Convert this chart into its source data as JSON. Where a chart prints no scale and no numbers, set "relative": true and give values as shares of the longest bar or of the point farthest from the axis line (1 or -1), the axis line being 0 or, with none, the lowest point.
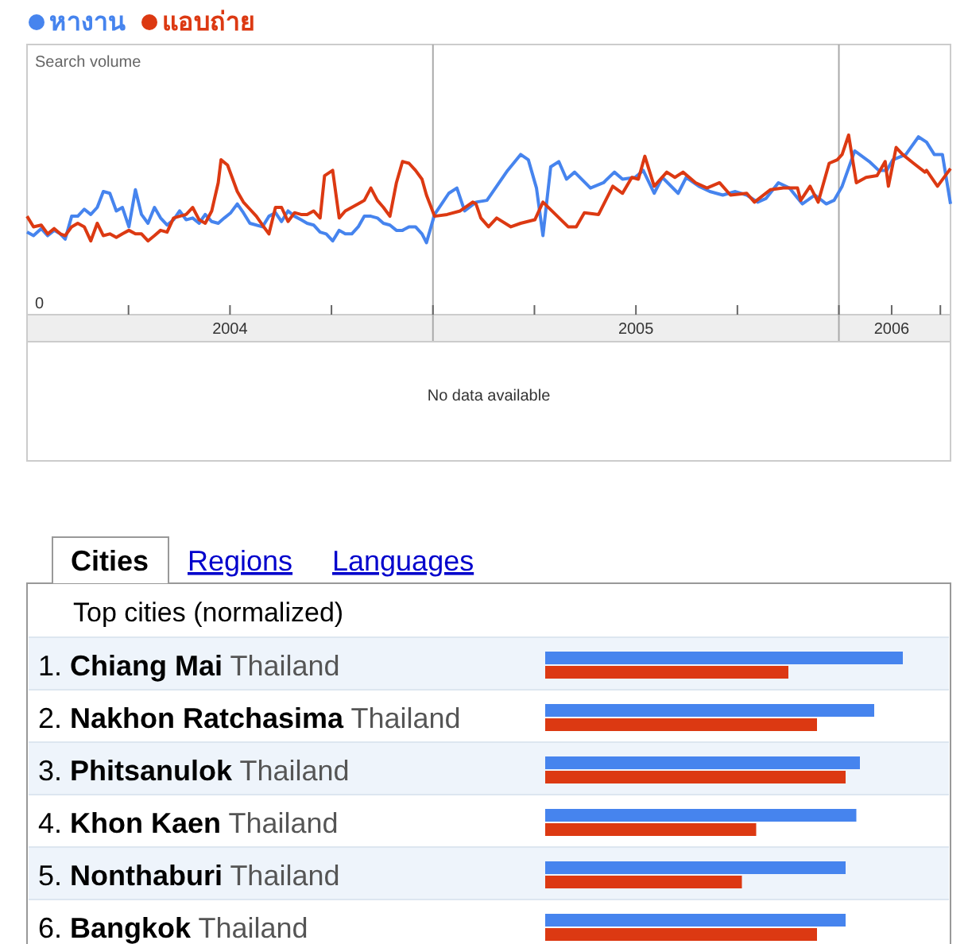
{
  "chart_data": [
    {
      "type": "line",
      "ylabel": "Search volume",
      "annotations": [
        "0",
        "No data available"
      ],
      "legend": "top left",
      "grid": "x",
      "relative": true,
      "line_style": "solid",
      "xlim": [
        2004,
        2006.275
      ],
      "xticks": [
        {
          "value": 2004.25,
          "label": null
        },
        {
          "value": 2004.5,
          "label": "2004"
        },
        {
          "value": 2004.75,
          "label": null
        },
        {
          "value": 2005,
          "label": null
        },
        {
          "value": 2005.25,
          "label": null
        },
        {
          "value": 2005.5,
          "label": "2005"
        },
        {
          "value": 2005.75,
          "label": null
        },
        {
          "value": 2006,
          "label": null
        },
        {
          "value": 2006.13,
          "label": "2006"
        },
        {
          "value": 2006.25,
          "label": null
        }
      ],
      "series": [
        {
          "name": "หางาน",
          "color": "#4684ee",
          "x": [
            2004.0,
            2004.016,
            2004.035,
            2004.051,
            2004.067,
            2004.082,
            2004.094,
            2004.11,
            2004.125,
            2004.141,
            2004.157,
            2004.173,
            2004.188,
            2004.204,
            2004.22,
            2004.235,
            2004.251,
            2004.267,
            2004.282,
            2004.298,
            2004.314,
            2004.329,
            2004.345,
            2004.361,
            2004.376,
            2004.392,
            2004.408,
            2004.424,
            2004.439,
            2004.455,
            2004.471,
            2004.486,
            2004.502,
            2004.518,
            2004.533,
            2004.549,
            2004.565,
            2004.58,
            2004.596,
            2004.612,
            2004.627,
            2004.643,
            2004.659,
            2004.675,
            2004.69,
            2004.706,
            2004.722,
            2004.737,
            2004.753,
            2004.769,
            2004.784,
            2004.8,
            2004.816,
            2004.831,
            2004.847,
            2004.863,
            2004.878,
            2004.894,
            2004.91,
            2004.925,
            2004.941,
            2004.957,
            2004.973,
            2004.984,
            2005.004,
            2005.039,
            2005.059,
            2005.078,
            2005.106,
            2005.133,
            2005.157,
            2005.184,
            2005.216,
            2005.235,
            2005.255,
            2005.271,
            2005.29,
            2005.31,
            2005.329,
            2005.349,
            2005.388,
            2005.42,
            2005.447,
            2005.467,
            2005.498,
            2005.518,
            2005.545,
            2005.565,
            2005.604,
            2005.624,
            2005.655,
            2005.682,
            2005.714,
            2005.745,
            2005.773,
            2005.8,
            2005.82,
            2005.851,
            2005.878,
            2005.91,
            2005.941,
            2005.969,
            2005.988,
            2006.008,
            2006.039,
            2006.075,
            2006.098,
            2006.118,
            2006.133,
            2006.165,
            2006.196,
            2006.216,
            2006.235,
            2006.255,
            2006.275
          ],
          "values": [
            0.45,
            0.43,
            0.47,
            0.43,
            0.46,
            0.44,
            0.41,
            0.54,
            0.54,
            0.58,
            0.55,
            0.59,
            0.68,
            0.67,
            0.57,
            0.59,
            0.48,
            0.69,
            0.55,
            0.5,
            0.59,
            0.53,
            0.49,
            0.52,
            0.57,
            0.52,
            0.53,
            0.5,
            0.55,
            0.51,
            0.5,
            0.53,
            0.56,
            0.61,
            0.56,
            0.5,
            0.49,
            0.48,
            0.54,
            0.56,
            0.51,
            0.57,
            0.54,
            0.52,
            0.5,
            0.49,
            0.45,
            0.44,
            0.4,
            0.46,
            0.44,
            0.44,
            0.48,
            0.54,
            0.54,
            0.53,
            0.5,
            0.49,
            0.46,
            0.46,
            0.48,
            0.48,
            0.44,
            0.39,
            0.55,
            0.67,
            0.7,
            0.57,
            0.62,
            0.63,
            0.71,
            0.8,
            0.89,
            0.86,
            0.7,
            0.43,
            0.82,
            0.85,
            0.75,
            0.79,
            0.7,
            0.73,
            0.79,
            0.75,
            0.76,
            0.8,
            0.67,
            0.76,
            0.67,
            0.76,
            0.71,
            0.68,
            0.66,
            0.68,
            0.66,
            0.62,
            0.64,
            0.73,
            0.7,
            0.61,
            0.66,
            0.61,
            0.63,
            0.71,
            0.91,
            0.85,
            0.8,
            0.8,
            0.86,
            0.89,
            0.99,
            0.96,
            0.89,
            0.89,
            0.61
          ]
        },
        {
          "name": "แอบถ่าย",
          "color": "#dc3912",
          "x": [
            2004.0,
            2004.016,
            2004.035,
            2004.051,
            2004.067,
            2004.082,
            2004.094,
            2004.11,
            2004.125,
            2004.141,
            2004.157,
            2004.173,
            2004.188,
            2004.204,
            2004.22,
            2004.235,
            2004.251,
            2004.267,
            2004.282,
            2004.298,
            2004.314,
            2004.329,
            2004.345,
            2004.361,
            2004.376,
            2004.392,
            2004.408,
            2004.424,
            2004.439,
            2004.455,
            2004.471,
            2004.478,
            2004.494,
            2004.518,
            2004.533,
            2004.549,
            2004.565,
            2004.58,
            2004.596,
            2004.612,
            2004.627,
            2004.643,
            2004.659,
            2004.675,
            2004.69,
            2004.706,
            2004.722,
            2004.733,
            2004.753,
            2004.769,
            2004.784,
            2004.8,
            2004.816,
            2004.831,
            2004.847,
            2004.863,
            2004.878,
            2004.894,
            2004.91,
            2004.925,
            2004.941,
            2004.957,
            2004.973,
            2004.984,
            2005.004,
            2005.035,
            2005.067,
            2005.098,
            2005.106,
            2005.118,
            2005.137,
            2005.157,
            2005.192,
            2005.216,
            2005.251,
            2005.271,
            2005.302,
            2005.333,
            2005.353,
            2005.373,
            2005.408,
            2005.443,
            2005.467,
            2005.49,
            2005.506,
            2005.522,
            2005.545,
            2005.576,
            2005.596,
            2005.616,
            2005.647,
            2005.675,
            2005.706,
            2005.733,
            2005.773,
            2005.792,
            2005.831,
            2005.863,
            2005.898,
            2005.906,
            2005.929,
            2005.949,
            2005.976,
            2005.996,
            2006.008,
            2006.024,
            2006.043,
            2006.067,
            2006.094,
            2006.114,
            2006.122,
            2006.141,
            2006.157,
            2006.184,
            2006.212,
            2006.216,
            2006.243,
            2006.275
          ],
          "values": [
            0.54,
            0.48,
            0.49,
            0.44,
            0.47,
            0.44,
            0.43,
            0.48,
            0.5,
            0.48,
            0.4,
            0.5,
            0.43,
            0.44,
            0.42,
            0.44,
            0.46,
            0.44,
            0.44,
            0.4,
            0.43,
            0.46,
            0.45,
            0.53,
            0.54,
            0.55,
            0.59,
            0.52,
            0.5,
            0.57,
            0.73,
            0.86,
            0.83,
            0.68,
            0.62,
            0.58,
            0.54,
            0.49,
            0.44,
            0.59,
            0.59,
            0.51,
            0.56,
            0.55,
            0.55,
            0.57,
            0.53,
            0.77,
            0.8,
            0.53,
            0.57,
            0.59,
            0.61,
            0.63,
            0.7,
            0.63,
            0.59,
            0.54,
            0.73,
            0.85,
            0.84,
            0.8,
            0.75,
            0.66,
            0.54,
            0.55,
            0.57,
            0.62,
            0.61,
            0.53,
            0.48,
            0.53,
            0.48,
            0.5,
            0.52,
            0.62,
            0.55,
            0.48,
            0.48,
            0.56,
            0.55,
            0.71,
            0.67,
            0.76,
            0.75,
            0.88,
            0.71,
            0.79,
            0.76,
            0.79,
            0.73,
            0.7,
            0.73,
            0.66,
            0.67,
            0.62,
            0.69,
            0.7,
            0.7,
            0.63,
            0.71,
            0.62,
            0.84,
            0.86,
            0.89,
            1.0,
            0.73,
            0.76,
            0.77,
            0.85,
            0.71,
            0.93,
            0.89,
            0.84,
            0.79,
            0.8,
            0.71,
            0.81
          ]
        }
      ]
    },
    {
      "type": "bar",
      "orientation": "horizontal",
      "relative": true,
      "title": "Top cities (normalized)",
      "annotations": [
        "Cities",
        "Regions",
        "Languages"
      ],
      "categories": [
        "1. Chiang Mai Thailand",
        "2. Nakhon Ratchasima Thailand",
        "3. Phitsanulok Thailand",
        "4. Khon Kaen Thailand",
        "5. Nonthaburi Thailand",
        "6. Bangkok Thailand"
      ],
      "series": [
        {
          "color": "#4684ee",
          "values": [
            1,
            0.92,
            0.88,
            0.87,
            0.84,
            0.84
          ]
        },
        {
          "color": "#dc3912",
          "values": [
            0.68,
            0.76,
            0.84,
            0.59,
            0.55,
            0.76
          ]
        }
      ]
    }
  ]
}
